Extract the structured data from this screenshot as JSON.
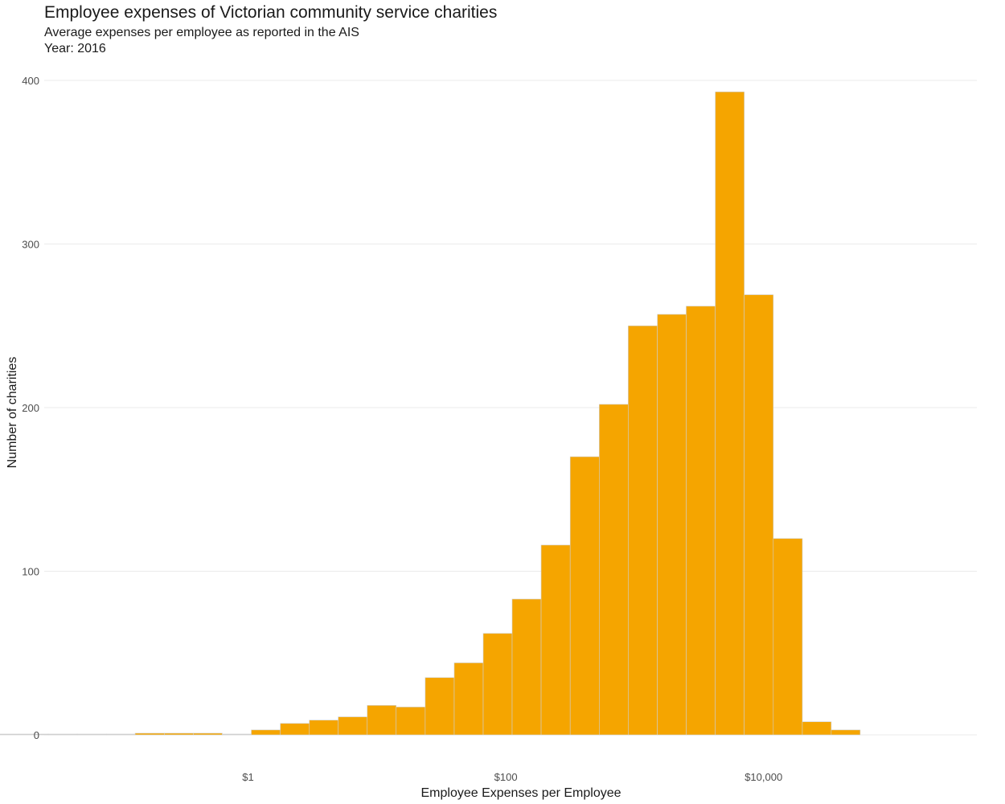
{
  "chart_data": {
    "type": "bar",
    "title": "Employee expenses of Victorian community service charities",
    "subtitle": "Average expenses per employee as reported in the AIS",
    "subtitle2": "Year: 2016",
    "xlabel": "Employee Expenses per Employee",
    "ylabel": "Number of charities",
    "x_scale": "log10",
    "x_tick_values": [
      1,
      100,
      10000
    ],
    "x_tick_labels": [
      "$1",
      "$100",
      "$10,000"
    ],
    "ylim": [
      0,
      400
    ],
    "y_ticks": [
      0,
      100,
      200,
      300,
      400
    ],
    "grid": true,
    "bar_color": "#F5A500",
    "bin_width_log10": 0.225,
    "bins": [
      {
        "x_from": 0.01,
        "x_to": 0.0168,
        "count": 0
      },
      {
        "x_from": 0.0168,
        "x_to": 0.0282,
        "count": 0
      },
      {
        "x_from": 0.0282,
        "x_to": 0.0473,
        "count": 0
      },
      {
        "x_from": 0.0473,
        "x_to": 0.0794,
        "count": 0
      },
      {
        "x_from": 0.0794,
        "x_to": 0.133,
        "count": 0
      },
      {
        "x_from": 0.133,
        "x_to": 0.224,
        "count": 1
      },
      {
        "x_from": 0.224,
        "x_to": 0.376,
        "count": 1
      },
      {
        "x_from": 0.376,
        "x_to": 0.631,
        "count": 1
      },
      {
        "x_from": 0.631,
        "x_to": 1.06,
        "count": 0
      },
      {
        "x_from": 1.06,
        "x_to": 1.78,
        "count": 3
      },
      {
        "x_from": 1.78,
        "x_to": 2.99,
        "count": 7
      },
      {
        "x_from": 2.99,
        "x_to": 5.01,
        "count": 9
      },
      {
        "x_from": 5.01,
        "x_to": 8.41,
        "count": 11
      },
      {
        "x_from": 8.41,
        "x_to": 14.1,
        "count": 18
      },
      {
        "x_from": 14.1,
        "x_to": 23.7,
        "count": 17
      },
      {
        "x_from": 23.7,
        "x_to": 39.8,
        "count": 35
      },
      {
        "x_from": 39.8,
        "x_to": 66.8,
        "count": 44
      },
      {
        "x_from": 66.8,
        "x_to": 112,
        "count": 62
      },
      {
        "x_from": 112,
        "x_to": 188,
        "count": 83
      },
      {
        "x_from": 188,
        "x_to": 316,
        "count": 116
      },
      {
        "x_from": 316,
        "x_to": 531,
        "count": 170
      },
      {
        "x_from": 531,
        "x_to": 891,
        "count": 202
      },
      {
        "x_from": 891,
        "x_to": 1500,
        "count": 250
      },
      {
        "x_from": 1500,
        "x_to": 2510,
        "count": 257
      },
      {
        "x_from": 2510,
        "x_to": 4220,
        "count": 262
      },
      {
        "x_from": 4220,
        "x_to": 7080,
        "count": 393
      },
      {
        "x_from": 7080,
        "x_to": 11900,
        "count": 269
      },
      {
        "x_from": 11900,
        "x_to": 20000,
        "count": 120
      },
      {
        "x_from": 20000,
        "x_to": 33500,
        "count": 8
      },
      {
        "x_from": 33500,
        "x_to": 56200,
        "count": 3
      }
    ]
  }
}
